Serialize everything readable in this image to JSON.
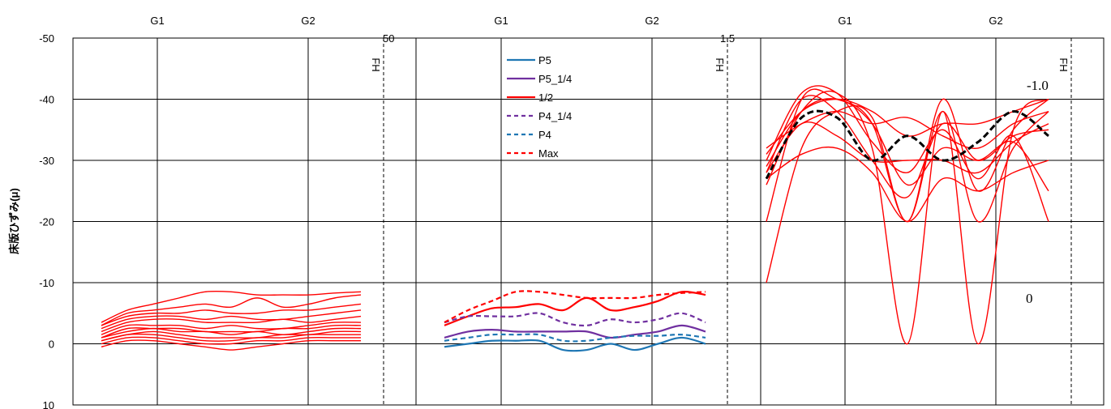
{
  "chart_data": {
    "type": "line",
    "ylabel": "床版ひずみ(μ)",
    "ylim": [
      10,
      -50
    ],
    "y_ticks": [
      "-50",
      "-40",
      "-30",
      "-20",
      "-10",
      "0",
      "10"
    ],
    "x_labels": [
      "G1",
      "G2"
    ],
    "fh_label": "FH",
    "clipped_labels": [
      "50",
      "1.5"
    ],
    "panel3_annotations": [
      "-1.0",
      "0"
    ],
    "colors": {
      "red": "#ff0000",
      "blue": "#1f77b4",
      "purple": "#7030a0",
      "black": "#000000"
    },
    "legend": [
      {
        "label": "P5",
        "color": "#1f77b4",
        "dash": "solid"
      },
      {
        "label": "P5_1/4",
        "color": "#7030a0",
        "dash": "solid"
      },
      {
        "label": "1/2",
        "color": "#ff0000",
        "dash": "solid"
      },
      {
        "label": "P4_1/4",
        "color": "#7030a0",
        "dash": "dashed"
      },
      {
        "label": "P4",
        "color": "#1f77b4",
        "dash": "dashed"
      },
      {
        "label": "Max",
        "color": "#ff0000",
        "dash": "dashed"
      }
    ],
    "panels": [
      {
        "x_range": [
          0,
          10
        ],
        "series": [
          {
            "color": "#ff0000",
            "values": [
              -3.5,
              -5.5,
              -6.5,
              -7.5,
              -8.5,
              -8.5,
              -8,
              -8,
              -8,
              -8.3,
              -8.5
            ]
          },
          {
            "color": "#ff0000",
            "values": [
              -3,
              -5,
              -5.5,
              -6,
              -6.5,
              -6,
              -7.5,
              -6,
              -6.5,
              -7.5,
              -8
            ]
          },
          {
            "color": "#ff0000",
            "values": [
              -3,
              -4.5,
              -5,
              -5,
              -5.5,
              -5,
              -5,
              -5.5,
              -5.5,
              -6,
              -6.5
            ]
          },
          {
            "color": "#ff0000",
            "values": [
              -2.5,
              -4,
              -4.5,
              -4.5,
              -4,
              -4.5,
              -4,
              -4,
              -4.5,
              -5,
              -5.5
            ]
          },
          {
            "color": "#ff0000",
            "values": [
              -2,
              -3.5,
              -4,
              -4,
              -3.5,
              -3.5,
              -3.5,
              -4,
              -3.5,
              -4,
              -4.5
            ]
          },
          {
            "color": "#ff0000",
            "values": [
              -1.5,
              -3,
              -3,
              -3,
              -2.5,
              -3,
              -2.5,
              -2.5,
              -3,
              -3.5,
              -3.5
            ]
          },
          {
            "color": "#ff0000",
            "values": [
              -1,
              -2.5,
              -2.5,
              -2.5,
              -2,
              -2,
              -2,
              -2.5,
              -2.5,
              -3,
              -3
            ]
          },
          {
            "color": "#ff0000",
            "values": [
              -1,
              -2,
              -2.5,
              -2,
              -2,
              -1.5,
              -2,
              -1.5,
              -2,
              -2.5,
              -2.5
            ]
          },
          {
            "color": "#ff0000",
            "values": [
              -0.5,
              -1.5,
              -2,
              -1.5,
              -1,
              -1,
              -1,
              -1.5,
              -1.5,
              -2,
              -2
            ]
          },
          {
            "color": "#ff0000",
            "values": [
              -0.5,
              -1.5,
              -1.5,
              -1,
              -0.5,
              -0.5,
              -1,
              -1,
              -1.5,
              -1.5,
              -1.5
            ]
          },
          {
            "color": "#ff0000",
            "values": [
              0,
              -1,
              -1,
              -0.5,
              0,
              0,
              -0.5,
              -0.5,
              -1,
              -1,
              -1
            ]
          },
          {
            "color": "#ff0000",
            "values": [
              0.5,
              -0.5,
              -0.5,
              0,
              0.5,
              1,
              0.5,
              0,
              -0.5,
              -0.5,
              -0.5
            ]
          }
        ]
      },
      {
        "x_range": [
          0,
          10
        ],
        "series": [
          {
            "name": "P5",
            "color": "#1f77b4",
            "dash": "solid",
            "values": [
              0.5,
              0,
              -0.5,
              -0.5,
              -0.5,
              1,
              1,
              0,
              1,
              0,
              -1,
              0
            ]
          },
          {
            "name": "P5_1/4",
            "color": "#7030a0",
            "dash": "solid",
            "values": [
              -1,
              -2,
              -2.3,
              -2,
              -2,
              -2,
              -2,
              -1,
              -1.5,
              -2,
              -3,
              -2
            ]
          },
          {
            "name": "1/2",
            "color": "#ff0000",
            "dash": "solid",
            "values": [
              -3,
              -4.5,
              -5.8,
              -6,
              -6.5,
              -5.5,
              -7.5,
              -5.5,
              -6,
              -7,
              -8.5,
              -8
            ]
          },
          {
            "name": "P4_1/4",
            "color": "#7030a0",
            "dash": "dashed",
            "values": [
              -3.5,
              -4.5,
              -4.5,
              -4.5,
              -5,
              -3.5,
              -3,
              -4,
              -3.5,
              -4,
              -5,
              -3.5
            ]
          },
          {
            "name": "P4",
            "color": "#1f77b4",
            "dash": "dashed",
            "values": [
              -0.5,
              -1,
              -1.5,
              -1.5,
              -1.5,
              -0.5,
              -0.5,
              -1,
              -1.3,
              -1.3,
              -1.5,
              -1
            ]
          },
          {
            "name": "Max",
            "color": "#ff0000",
            "dash": "dashed",
            "values": [
              -3.5,
              -5.5,
              -7,
              -8.5,
              -8.5,
              -8,
              -7.5,
              -7.5,
              -7.5,
              -8,
              -8.3,
              -8.5
            ]
          }
        ]
      },
      {
        "x_range": [
          0,
          8
        ],
        "series": [
          {
            "color": "#ff0000",
            "values": [
              -10,
              -32,
              -38,
              -37,
              -20,
              -40,
              -25,
              -35,
              -40
            ]
          },
          {
            "color": "#ff0000",
            "values": [
              -20,
              -40,
              -40,
              -36,
              -20,
              -38,
              -20,
              -32,
              -38
            ]
          },
          {
            "color": "#ff0000",
            "values": [
              -26,
              -38,
              -41,
              -32,
              0,
              -38,
              0,
              -35,
              -40
            ]
          },
          {
            "color": "#ff0000",
            "values": [
              -28,
              -40,
              -38,
              -30,
              -24,
              -36,
              -30,
              -34,
              -35
            ]
          },
          {
            "color": "#ff0000",
            "values": [
              -30,
              -41,
              -41,
              -33,
              -28,
              -35,
              -27,
              -34,
              -20
            ]
          },
          {
            "color": "#ff0000",
            "values": [
              -31,
              -38,
              -40,
              -38,
              -34,
              -36,
              -36,
              -38,
              -40
            ]
          },
          {
            "color": "#ff0000",
            "values": [
              -32,
              -36,
              -38,
              -36,
              -37,
              -34,
              -32,
              -36,
              -38
            ]
          },
          {
            "color": "#ff0000",
            "values": [
              -28,
              -36,
              -34,
              -30,
              -30,
              -30,
              -28,
              -33,
              -36
            ]
          },
          {
            "color": "#ff0000",
            "values": [
              -27,
              -31,
              -32,
              -28,
              -20,
              -27,
              -25,
              -28,
              -30
            ]
          },
          {
            "color": "#ff0000",
            "values": [
              -29,
              -38,
              -40,
              -36,
              -26,
              -32,
              -30,
              -33,
              -25
            ]
          },
          {
            "color": "#000000",
            "dash": "dashed",
            "bold": true,
            "values": [
              -27,
              -37,
              -37,
              -30,
              -34,
              -30,
              -33,
              -38,
              -34
            ]
          }
        ]
      }
    ]
  }
}
